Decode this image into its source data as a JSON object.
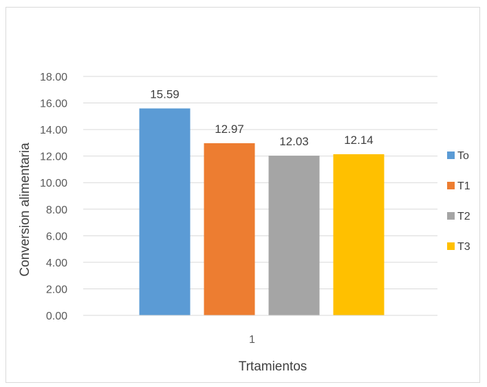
{
  "chart_data": {
    "type": "bar",
    "categories": [
      "1"
    ],
    "series": [
      {
        "name": "To",
        "values": [
          15.59
        ],
        "color": "#5b9bd5"
      },
      {
        "name": "T1",
        "values": [
          12.97
        ],
        "color": "#ed7d31"
      },
      {
        "name": "T2",
        "values": [
          12.03
        ],
        "color": "#a5a5a5"
      },
      {
        "name": "T3",
        "values": [
          12.14
        ],
        "color": "#ffc000"
      }
    ],
    "data_labels": [
      "15.59",
      "12.97",
      "12.03",
      "12.14"
    ],
    "xlabel": "Trtamientos",
    "ylabel": "Conversion alimentaria",
    "ylim": [
      0,
      18
    ],
    "yticks": [
      "0.00",
      "2.00",
      "4.00",
      "6.00",
      "8.00",
      "10.00",
      "12.00",
      "14.00",
      "16.00",
      "18.00"
    ],
    "grid": true,
    "legend": "right"
  }
}
